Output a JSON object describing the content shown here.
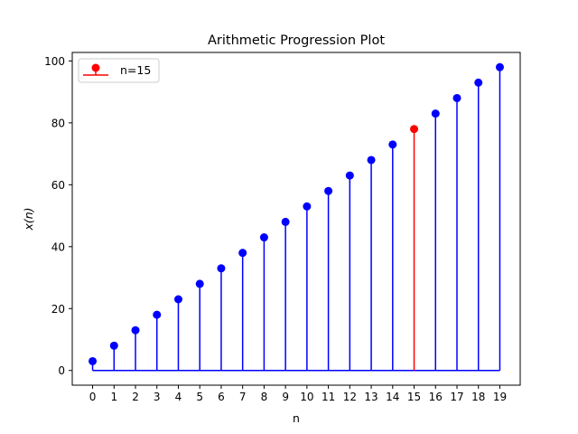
{
  "chart_data": {
    "type": "stem",
    "title": "Arithmetic Progression Plot",
    "xlabel": "n",
    "ylabel": "x(n)",
    "x": [
      0,
      1,
      2,
      3,
      4,
      5,
      6,
      7,
      8,
      9,
      10,
      11,
      12,
      13,
      14,
      15,
      16,
      17,
      18,
      19
    ],
    "values": [
      3,
      8,
      13,
      18,
      23,
      28,
      33,
      38,
      43,
      48,
      53,
      58,
      63,
      68,
      73,
      78,
      83,
      88,
      93,
      98
    ],
    "xlim": [
      -0.95,
      19.95
    ],
    "ylim": [
      -4.75,
      102.75
    ],
    "yticks": [
      0,
      20,
      40,
      60,
      80,
      100
    ],
    "baseline": 0,
    "highlight": {
      "n": 15,
      "label": "n=15",
      "color": "#ff0000"
    },
    "series_color": "#0000ff",
    "legend": {
      "placement": "top-left",
      "entries": [
        "n=15"
      ]
    }
  }
}
